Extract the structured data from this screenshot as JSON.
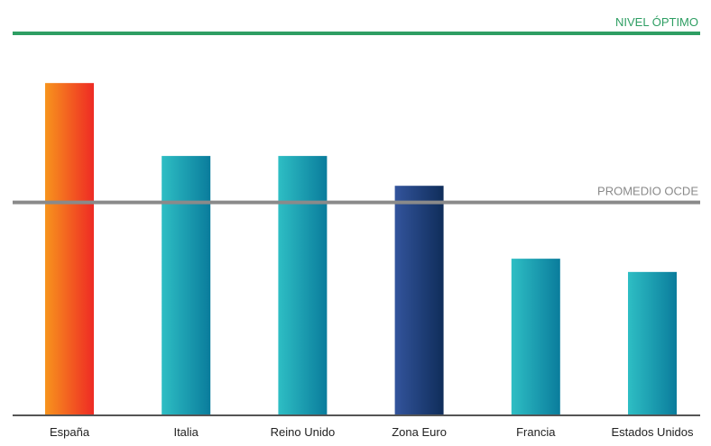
{
  "chart_data": {
    "type": "bar",
    "categories": [
      "España",
      "Italia",
      "Reino Unido",
      "Zona Euro",
      "Francia",
      "Estados Unidos"
    ],
    "values": [
      100,
      78,
      78,
      69,
      47,
      43
    ],
    "highlight": {
      "España": "orange-red",
      "Zona Euro": "navy"
    },
    "reference_lines": [
      {
        "label": "NIVEL ÓPTIMO",
        "value": 115,
        "color": "#2e9e63"
      },
      {
        "label": "PROMEDIO OCDE",
        "value": 64,
        "color": "#8a8a8a"
      }
    ],
    "title": "",
    "xlabel": "",
    "ylabel": "",
    "ylim": [
      0,
      115
    ],
    "grid": false,
    "legend": "none",
    "colors": {
      "default_start": "#2ebec4",
      "default_end": "#0a7c9c",
      "spain_start": "#f7941d",
      "spain_end": "#ee2a24",
      "euro_start": "#33549c",
      "euro_end": "#0f2d5a",
      "axis": "#555555",
      "label": "#222222"
    }
  }
}
